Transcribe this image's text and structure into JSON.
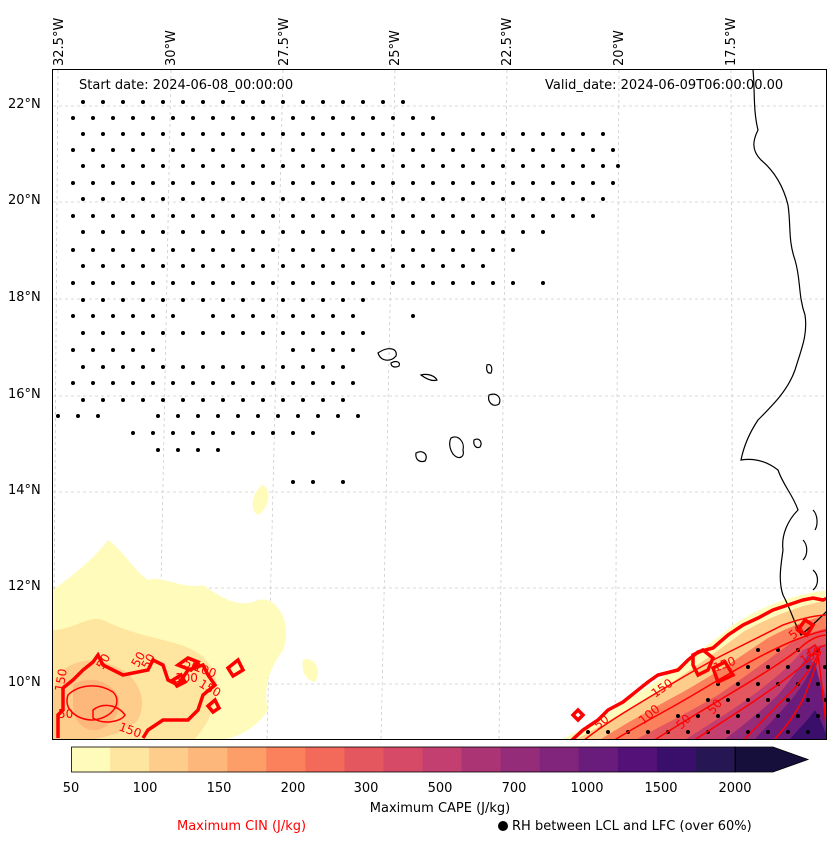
{
  "map": {
    "start_date": "Start date: 2024-06-08_00:00:00",
    "valid_date": "Valid_date: 2024-06-09T06:00:00.00",
    "lon_labels": [
      "32.5°W",
      "30°W",
      "27.5°W",
      "25°W",
      "22.5°W",
      "20°W",
      "17.5°W"
    ],
    "lat_labels": [
      "22°N",
      "20°N",
      "18°N",
      "16°N",
      "14°N",
      "12°N",
      "10°N"
    ],
    "extent": {
      "lon_min": -32.5,
      "lon_max": -14.9,
      "lat_min": 8.9,
      "lat_max": 22.7
    }
  },
  "colorbar": {
    "title": "Maximum CAPE (J/kg)",
    "tick_labels": [
      "50",
      "100",
      "150",
      "200",
      "300",
      "500",
      "700",
      "1000",
      "1500",
      "2000"
    ],
    "colors": [
      "#fffcbb",
      "#fee6a0",
      "#fecd8b",
      "#feb77a",
      "#fd9d68",
      "#fb805c",
      "#f36a5a",
      "#e5575e",
      "#d64a67",
      "#c23f6f",
      "#ab3475",
      "#952c7a",
      "#80257b",
      "#6a1c7c",
      "#541279",
      "#3a0f6c",
      "#261654",
      "#160f3b"
    ]
  },
  "contours": {
    "cin_legend": "Maximum CIN (J/kg)",
    "cin_color": "#ff0000",
    "cin_labels": [
      "50",
      "50",
      "50",
      "150",
      "150",
      "50",
      "50",
      "100",
      "150",
      "100",
      "150",
      "50",
      "150",
      "50",
      "50",
      "150",
      "50",
      "100"
    ]
  },
  "hatching": {
    "rh_legend": "RH between LCL and LFC (over 60%)"
  }
}
